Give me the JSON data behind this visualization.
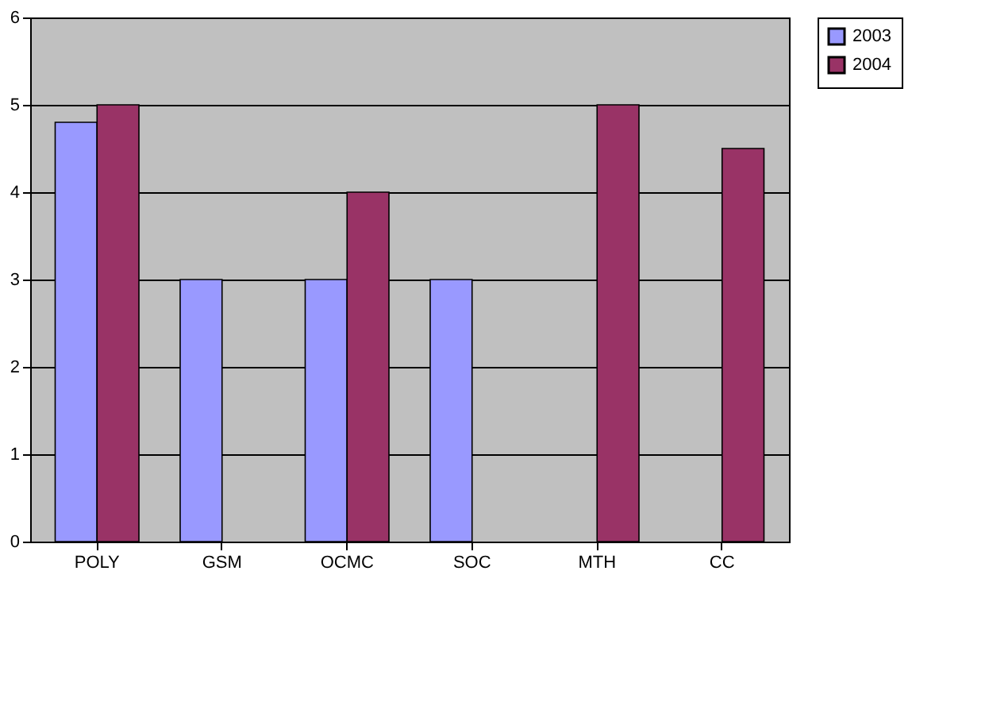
{
  "chart_data": {
    "type": "bar",
    "categories": [
      "POLY",
      "GSM",
      "OCMC",
      "SOC",
      "MTH",
      "CC"
    ],
    "series": [
      {
        "name": "2003",
        "color": "#9999ff",
        "values": [
          4.8,
          3,
          3,
          3,
          null,
          null
        ]
      },
      {
        "name": "2004",
        "color": "#993366",
        "values": [
          5,
          null,
          4,
          null,
          5,
          4.5
        ]
      }
    ],
    "ylim": [
      0,
      6
    ],
    "yticks": [
      0,
      1,
      2,
      3,
      4,
      5,
      6
    ],
    "grid": "y",
    "legend": "right"
  }
}
